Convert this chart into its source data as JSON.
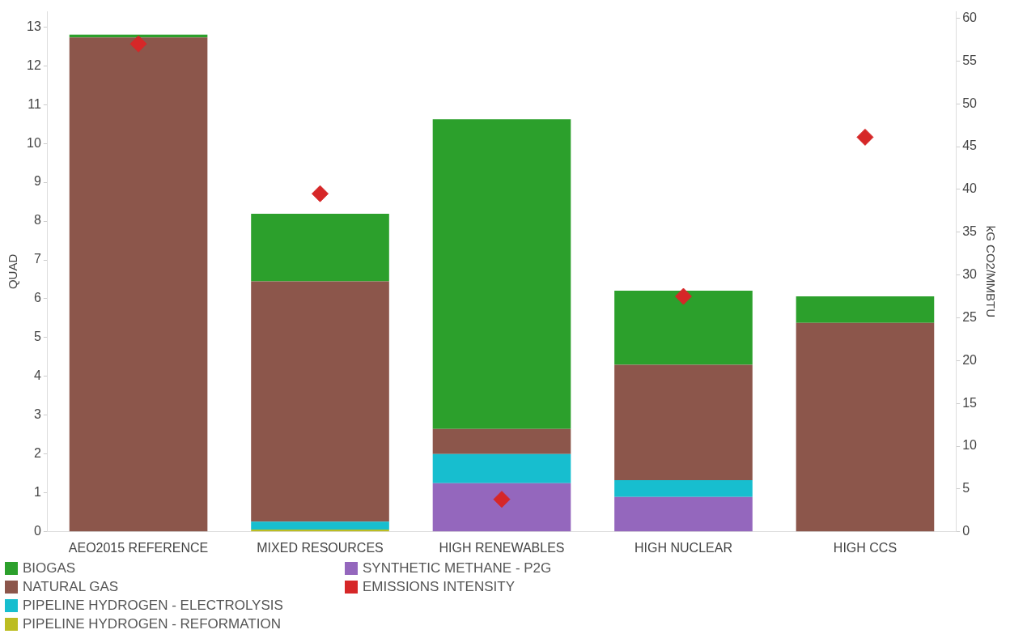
{
  "chart_data": {
    "type": "bar",
    "stacked": true,
    "ylabel": "QUAD",
    "y2label": "kG CO2/MMBTU",
    "categories": [
      "AEO2015 REFERENCE",
      "MIXED RESOURCES",
      "HIGH RENEWABLES",
      "HIGH NUCLEAR",
      "HIGH CCS"
    ],
    "series": [
      {
        "name": "SYNTHETIC METHANE - P2G",
        "color": "#9467bd",
        "values": [
          0,
          0,
          1.25,
          0.9,
          0
        ]
      },
      {
        "name": "PIPELINE HYDROGEN - REFORMATION",
        "color": "#bcbd22",
        "values": [
          0,
          0.06,
          0,
          0,
          0
        ]
      },
      {
        "name": "PIPELINE HYDROGEN - ELECTROLYSIS",
        "color": "#17becf",
        "values": [
          0,
          0.2,
          0.75,
          0.43,
          0
        ]
      },
      {
        "name": "NATURAL GAS",
        "color": "#8c564b",
        "values": [
          12.73,
          6.19,
          0.65,
          2.97,
          5.38
        ]
      },
      {
        "name": "BIOGAS",
        "color": "#2ca02c",
        "values": [
          0.07,
          1.74,
          7.97,
          1.91,
          0.68
        ]
      },
      {
        "name": "EMISSIONS INTENSITY",
        "color": "#d62728",
        "type": "scatter",
        "axis": "y2",
        "marker": "diamond",
        "values": [
          57,
          39.5,
          3.8,
          27.5,
          46.1
        ]
      }
    ],
    "ylim": [
      0,
      13.4
    ],
    "yticks": [
      0,
      1,
      2,
      3,
      4,
      5,
      6,
      7,
      8,
      9,
      10,
      11,
      12,
      13
    ],
    "y2lim": [
      0,
      60.8
    ],
    "y2ticks": [
      0,
      5,
      10,
      15,
      20,
      25,
      30,
      35,
      40,
      45,
      50,
      55,
      60
    ],
    "grid": false,
    "legend": "bottom"
  }
}
